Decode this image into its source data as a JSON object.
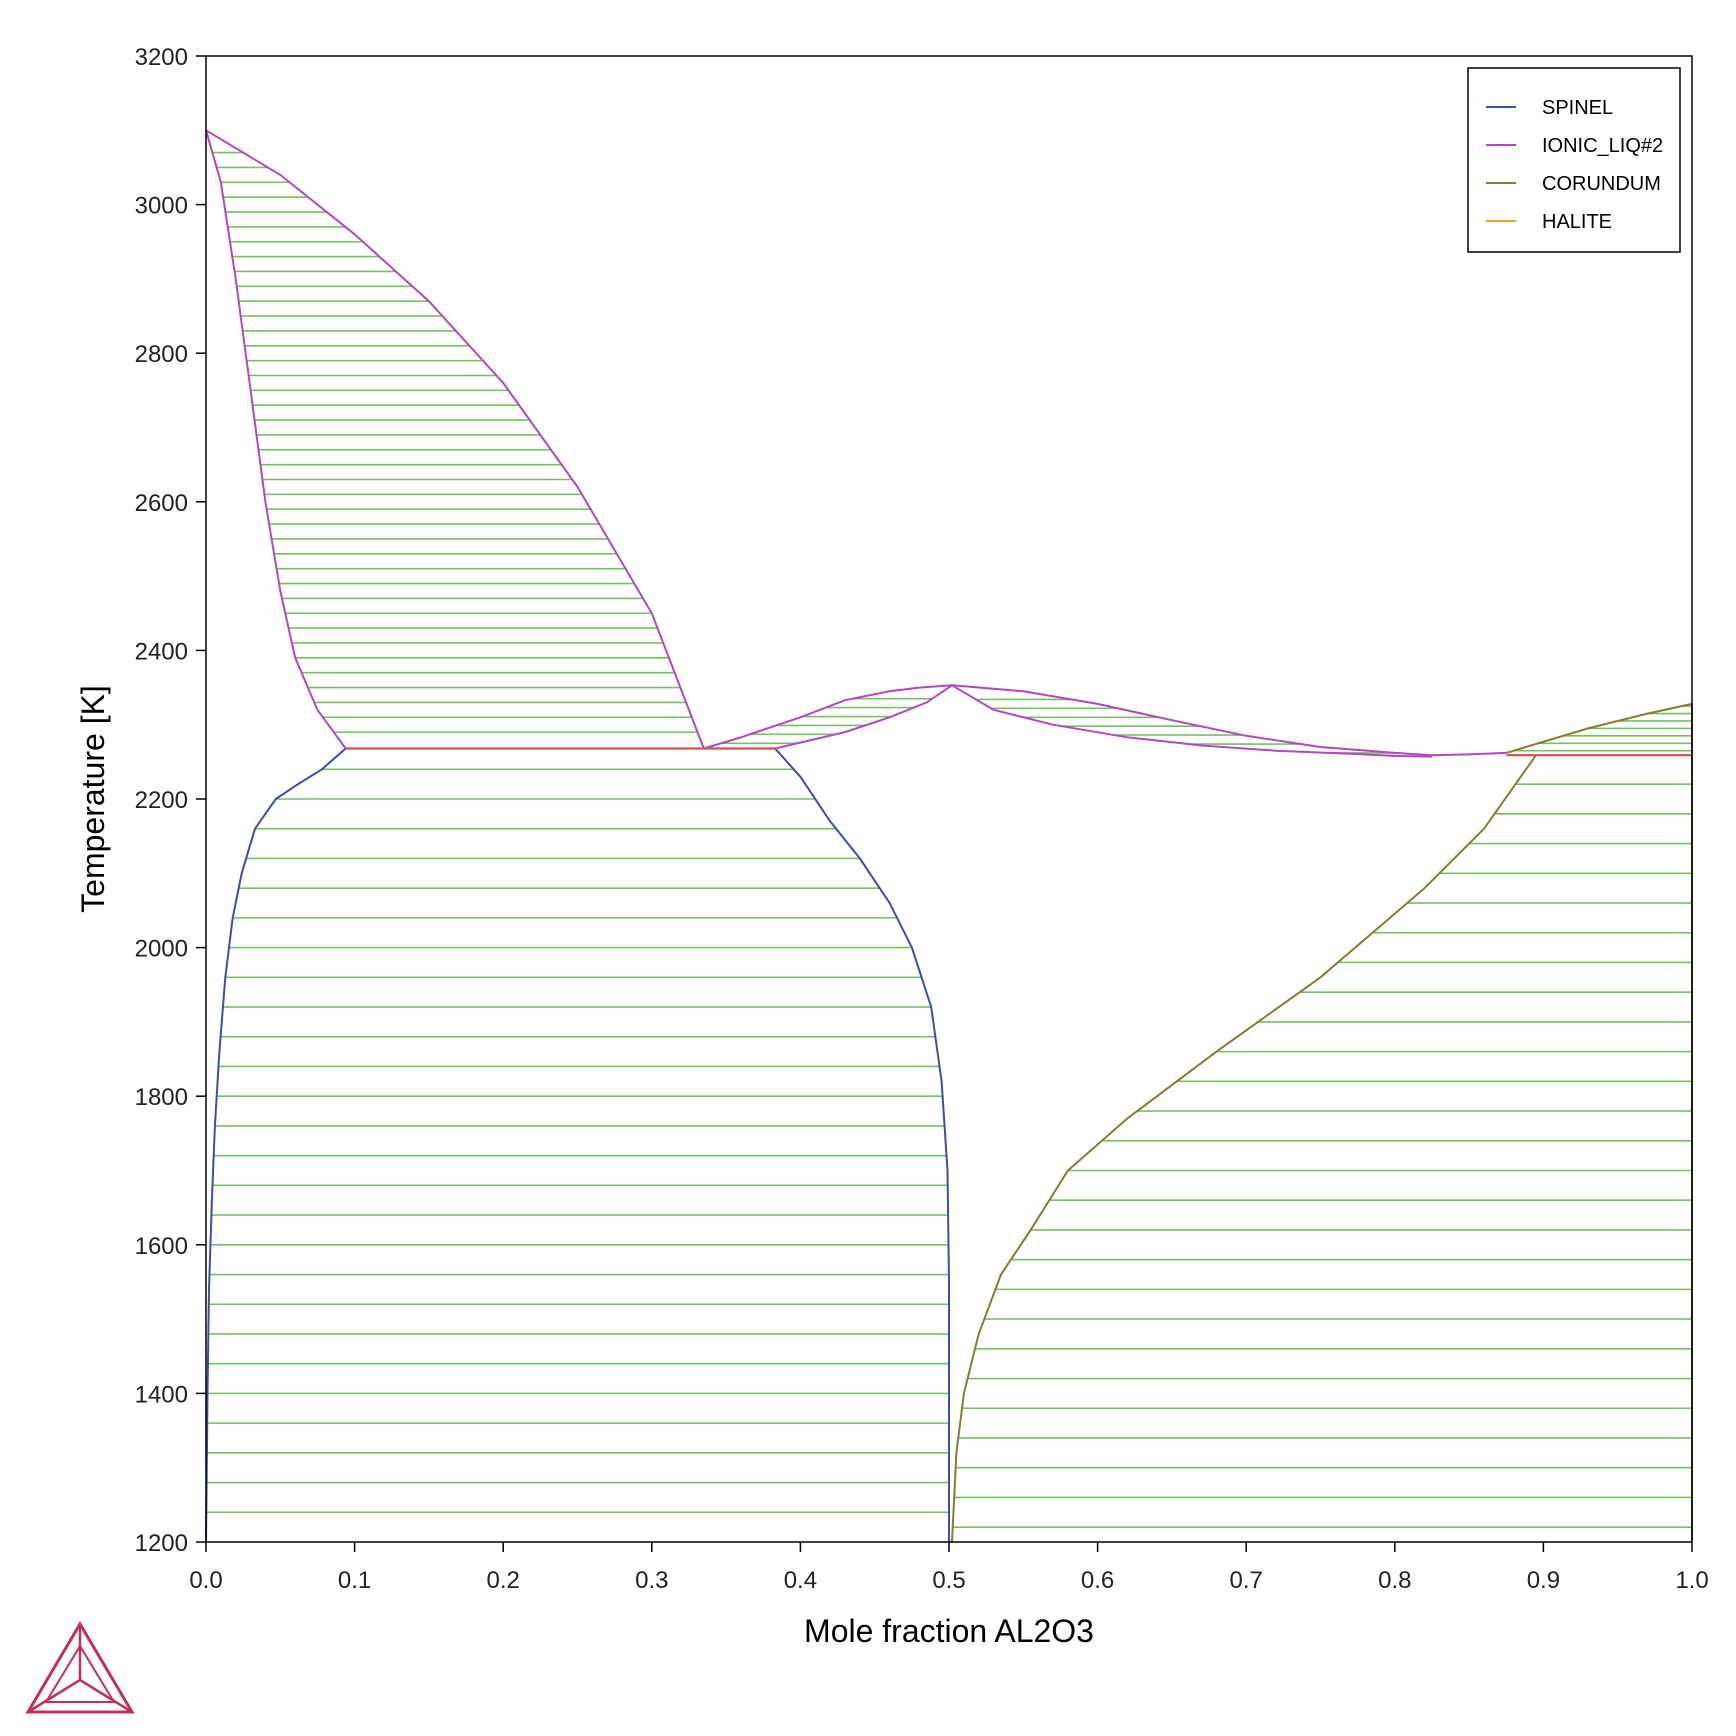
{
  "chart_data": {
    "type": "line",
    "xlabel": "Mole fraction AL2O3",
    "ylabel": "Temperature [K]",
    "xlim": [
      0,
      1
    ],
    "ylim": [
      1200,
      3200
    ],
    "xticks": [
      "0.0",
      "0.1",
      "0.2",
      "0.3",
      "0.4",
      "0.5",
      "0.6",
      "0.7",
      "0.8",
      "0.9",
      "1.0"
    ],
    "yticks": [
      "1200",
      "1400",
      "1600",
      "1800",
      "2000",
      "2200",
      "2400",
      "2600",
      "2800",
      "3000",
      "3200"
    ],
    "grid": false,
    "legend_position": "top-right",
    "colors": {
      "spinel": "#3a50a0",
      "ionic_liq": "#b048c0",
      "corundum": "#8a7a30",
      "halite": "#f0a020",
      "invariant": "#d05050",
      "tieline": "#4aaa30",
      "logo": "#c0305a"
    },
    "series": [
      {
        "name": "SPINEL",
        "key": "spinel",
        "lines": [
          [
            [
              0.094,
              2268
            ],
            [
              0.078,
              2240
            ],
            [
              0.062,
              2220
            ],
            [
              0.047,
              2200
            ],
            [
              0.033,
              2160
            ],
            [
              0.024,
              2100
            ],
            [
              0.018,
              2040
            ],
            [
              0.013,
              1960
            ],
            [
              0.009,
              1860
            ],
            [
              0.006,
              1760
            ],
            [
              0.004,
              1660
            ],
            [
              0.002,
              1540
            ],
            [
              0.001,
              1400
            ],
            [
              0.0,
              1200
            ]
          ],
          [
            [
              0.383,
              2268
            ],
            [
              0.4,
              2230
            ],
            [
              0.42,
              2170
            ],
            [
              0.44,
              2120
            ],
            [
              0.46,
              2060
            ],
            [
              0.475,
              2000
            ],
            [
              0.488,
              1920
            ],
            [
              0.495,
              1820
            ],
            [
              0.499,
              1700
            ],
            [
              0.5,
              1550
            ],
            [
              0.5,
              1400
            ],
            [
              0.5,
              1200
            ]
          ]
        ]
      },
      {
        "name": "IONIC_LIQ#2",
        "key": "ionic_liq",
        "lines": [
          [
            [
              0.0,
              3100
            ],
            [
              0.01,
              3030
            ],
            [
              0.02,
              2900
            ],
            [
              0.03,
              2750
            ],
            [
              0.04,
              2600
            ],
            [
              0.05,
              2480
            ],
            [
              0.06,
              2390
            ],
            [
              0.075,
              2320
            ],
            [
              0.094,
              2268
            ]
          ],
          [
            [
              0.0,
              3100
            ],
            [
              0.05,
              3040
            ],
            [
              0.1,
              2960
            ],
            [
              0.15,
              2870
            ],
            [
              0.2,
              2760
            ],
            [
              0.25,
              2620
            ],
            [
              0.3,
              2450
            ],
            [
              0.335,
              2268
            ]
          ],
          [
            [
              0.335,
              2268
            ],
            [
              0.36,
              2283
            ],
            [
              0.4,
              2310
            ],
            [
              0.43,
              2333
            ],
            [
              0.46,
              2345
            ],
            [
              0.48,
              2350
            ],
            [
              0.502,
              2353
            ]
          ],
          [
            [
              0.383,
              2268
            ],
            [
              0.43,
              2290
            ],
            [
              0.46,
              2310
            ],
            [
              0.485,
              2330
            ],
            [
              0.502,
              2353
            ]
          ],
          [
            [
              0.502,
              2353
            ],
            [
              0.55,
              2345
            ],
            [
              0.6,
              2328
            ],
            [
              0.65,
              2306
            ],
            [
              0.7,
              2285
            ],
            [
              0.75,
              2270
            ],
            [
              0.8,
              2262
            ],
            [
              0.825,
              2259
            ],
            [
              0.85,
              2260
            ],
            [
              0.875,
              2262
            ]
          ],
          [
            [
              0.502,
              2353
            ],
            [
              0.53,
              2320
            ],
            [
              0.57,
              2300
            ],
            [
              0.62,
              2283
            ],
            [
              0.67,
              2272
            ],
            [
              0.72,
              2265
            ],
            [
              0.77,
              2261
            ],
            [
              0.8,
              2258
            ],
            [
              0.825,
              2257
            ]
          ]
        ]
      },
      {
        "name": "CORUNDUM",
        "key": "corundum",
        "lines": [
          [
            [
              0.502,
              1200
            ],
            [
              0.505,
              1320
            ],
            [
              0.51,
              1400
            ],
            [
              0.52,
              1480
            ],
            [
              0.535,
              1560
            ],
            [
              0.555,
              1620
            ],
            [
              0.58,
              1700
            ],
            [
              0.62,
              1770
            ],
            [
              0.68,
              1860
            ],
            [
              0.75,
              1960
            ],
            [
              0.82,
              2080
            ],
            [
              0.86,
              2160
            ],
            [
              0.895,
              2259
            ]
          ],
          [
            [
              0.875,
              2262
            ],
            [
              0.93,
              2295
            ],
            [
              0.97,
              2315
            ],
            [
              1.0,
              2328
            ]
          ],
          [
            [
              1.0,
              1200
            ],
            [
              1.0,
              2328
            ]
          ]
        ]
      },
      {
        "name": "HALITE",
        "key": "halite",
        "lines": []
      }
    ],
    "invariant_lines": [
      {
        "y": 2268,
        "x": [
          0.094,
          0.383
        ]
      },
      {
        "y": 2259,
        "x": [
          0.875,
          1.0
        ]
      }
    ]
  }
}
